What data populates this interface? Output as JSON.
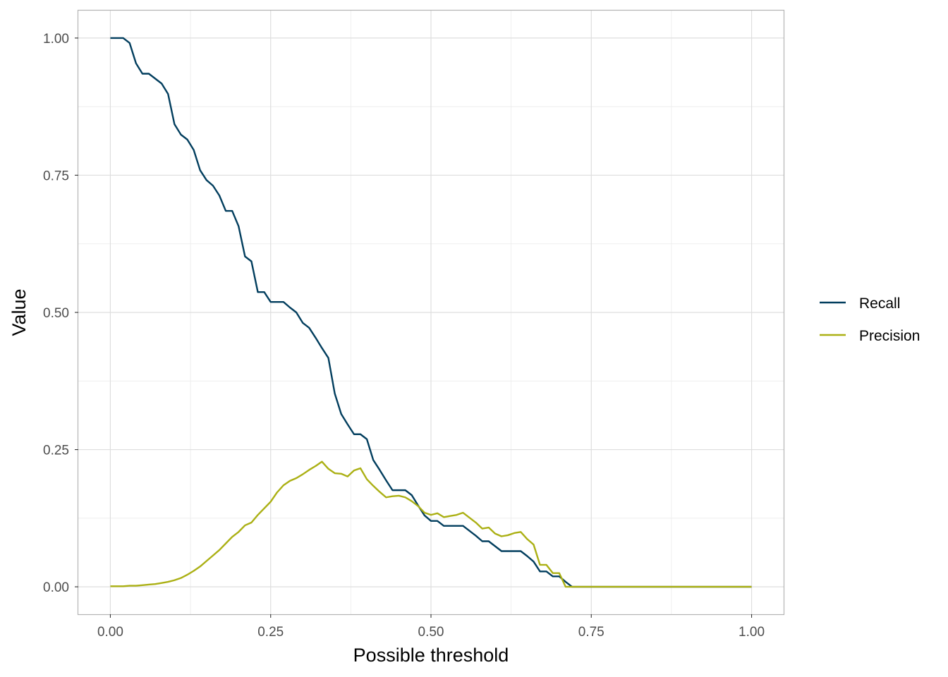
{
  "chart_data": {
    "type": "line",
    "xlabel": "Possible threshold",
    "ylabel": "Value",
    "xlim": [
      -0.05,
      1.05
    ],
    "ylim": [
      -0.05,
      1.05
    ],
    "x_ticks": [
      0,
      0.25,
      0.5,
      0.75,
      1
    ],
    "x_tick_labels": [
      "0.00",
      "0.25",
      "0.50",
      "0.75",
      "1.00"
    ],
    "y_ticks": [
      0,
      0.25,
      0.5,
      0.75,
      1
    ],
    "y_tick_labels": [
      "0.00",
      "0.25",
      "0.50",
      "0.75",
      "1.00"
    ],
    "grid": true,
    "legend": {
      "position": "right"
    },
    "x": [
      0.0,
      0.01,
      0.02,
      0.03,
      0.04,
      0.05,
      0.06,
      0.07,
      0.08,
      0.09,
      0.1,
      0.11,
      0.12,
      0.13,
      0.14,
      0.15,
      0.16,
      0.17,
      0.18,
      0.19,
      0.2,
      0.21,
      0.22,
      0.23,
      0.24,
      0.25,
      0.26,
      0.27,
      0.28,
      0.29,
      0.3,
      0.31,
      0.32,
      0.33,
      0.34,
      0.35,
      0.36,
      0.37,
      0.38,
      0.39,
      0.4,
      0.41,
      0.42,
      0.43,
      0.44,
      0.45,
      0.46,
      0.47,
      0.48,
      0.49,
      0.5,
      0.51,
      0.52,
      0.53,
      0.54,
      0.55,
      0.56,
      0.57,
      0.58,
      0.59,
      0.6,
      0.61,
      0.62,
      0.63,
      0.64,
      0.65,
      0.66,
      0.67,
      0.68,
      0.69,
      0.7,
      0.71,
      0.72,
      0.73,
      0.74,
      0.75,
      0.76,
      0.77,
      0.78,
      0.79,
      0.8,
      0.81,
      0.82,
      0.83,
      0.84,
      0.85,
      0.86,
      0.87,
      0.88,
      0.89,
      0.9,
      0.91,
      0.92,
      0.93,
      0.94,
      0.95,
      0.96,
      0.97,
      0.98,
      0.99,
      1.0
    ],
    "series": [
      {
        "name": "Recall",
        "color": "#023E5E",
        "values": [
          1.0,
          1.0,
          1.0,
          0.991,
          0.954,
          0.935,
          0.935,
          0.926,
          0.917,
          0.898,
          0.843,
          0.824,
          0.815,
          0.796,
          0.759,
          0.741,
          0.731,
          0.713,
          0.685,
          0.685,
          0.657,
          0.602,
          0.593,
          0.537,
          0.537,
          0.519,
          0.519,
          0.519,
          0.509,
          0.5,
          0.481,
          0.472,
          0.454,
          0.435,
          0.417,
          0.352,
          0.315,
          0.296,
          0.278,
          0.278,
          0.269,
          0.231,
          0.213,
          0.194,
          0.176,
          0.176,
          0.176,
          0.167,
          0.148,
          0.13,
          0.12,
          0.12,
          0.111,
          0.111,
          0.111,
          0.111,
          0.102,
          0.093,
          0.083,
          0.083,
          0.074,
          0.065,
          0.065,
          0.065,
          0.065,
          0.056,
          0.046,
          0.028,
          0.028,
          0.019,
          0.019,
          0.009,
          0.0,
          0.0,
          0.0,
          0.0,
          0.0,
          0.0,
          0.0,
          0.0,
          0.0,
          0.0,
          0.0,
          0.0,
          0.0,
          0.0,
          0.0,
          0.0,
          0.0,
          0.0,
          0.0,
          0.0,
          0.0,
          0.0,
          0.0,
          0.0,
          0.0,
          0.0,
          0.0,
          0.0,
          0.0
        ]
      },
      {
        "name": "Precision",
        "color": "#ABB014",
        "values": [
          0.001,
          0.001,
          0.001,
          0.002,
          0.002,
          0.003,
          0.004,
          0.005,
          0.007,
          0.009,
          0.012,
          0.016,
          0.022,
          0.029,
          0.037,
          0.047,
          0.057,
          0.067,
          0.079,
          0.091,
          0.1,
          0.112,
          0.117,
          0.131,
          0.143,
          0.155,
          0.172,
          0.185,
          0.193,
          0.198,
          0.205,
          0.213,
          0.22,
          0.228,
          0.215,
          0.207,
          0.206,
          0.201,
          0.212,
          0.216,
          0.196,
          0.184,
          0.173,
          0.163,
          0.165,
          0.166,
          0.163,
          0.156,
          0.147,
          0.135,
          0.131,
          0.134,
          0.127,
          0.129,
          0.131,
          0.135,
          0.126,
          0.117,
          0.106,
          0.108,
          0.097,
          0.092,
          0.094,
          0.098,
          0.1,
          0.087,
          0.077,
          0.04,
          0.04,
          0.025,
          0.025,
          0.0,
          0.0,
          0.0,
          0.0,
          0.0,
          0.0,
          0.0,
          0.0,
          0.0,
          0.0,
          0.0,
          0.0,
          0.0,
          0.0,
          0.0,
          0.0,
          0.0,
          0.0,
          0.0,
          0.0,
          0.0,
          0.0,
          0.0,
          0.0,
          0.0,
          0.0,
          0.0,
          0.0,
          0.0,
          0.0
        ]
      }
    ]
  }
}
